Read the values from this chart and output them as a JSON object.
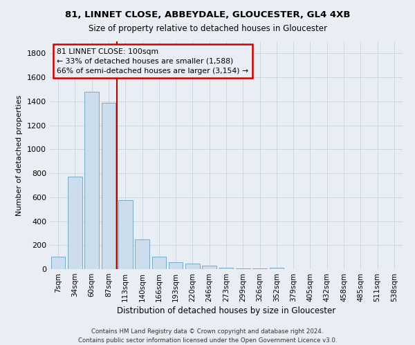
{
  "title1": "81, LINNET CLOSE, ABBEYDALE, GLOUCESTER, GL4 4XB",
  "title2": "Size of property relative to detached houses in Gloucester",
  "xlabel": "Distribution of detached houses by size in Gloucester",
  "ylabel": "Number of detached properties",
  "footnote1": "Contains HM Land Registry data © Crown copyright and database right 2024.",
  "footnote2": "Contains public sector information licensed under the Open Government Licence v3.0.",
  "bar_labels": [
    "7sqm",
    "34sqm",
    "60sqm",
    "87sqm",
    "113sqm",
    "140sqm",
    "166sqm",
    "193sqm",
    "220sqm",
    "246sqm",
    "273sqm",
    "299sqm",
    "326sqm",
    "352sqm",
    "379sqm",
    "405sqm",
    "432sqm",
    "458sqm",
    "485sqm",
    "511sqm",
    "538sqm"
  ],
  "bar_values": [
    105,
    770,
    1480,
    1390,
    575,
    250,
    105,
    60,
    45,
    30,
    10,
    5,
    3,
    10,
    2,
    2,
    2,
    2,
    2,
    2,
    2
  ],
  "bar_color": "#ccdded",
  "bar_edge_color": "#7aaac8",
  "grid_color": "#c8d4e0",
  "bg_color": "#e8eef4",
  "vline_color": "#bb0000",
  "annotation_text": "81 LINNET CLOSE: 100sqm\n← 33% of detached houses are smaller (1,588)\n66% of semi-detached houses are larger (3,154) →",
  "annotation_box_color": "#cc0000",
  "ylim": [
    0,
    1900
  ],
  "yticks": [
    0,
    200,
    400,
    600,
    800,
    1000,
    1200,
    1400,
    1600,
    1800
  ],
  "vline_position": 3.5,
  "figwidth": 6.0,
  "figheight": 5.0,
  "dpi": 100
}
